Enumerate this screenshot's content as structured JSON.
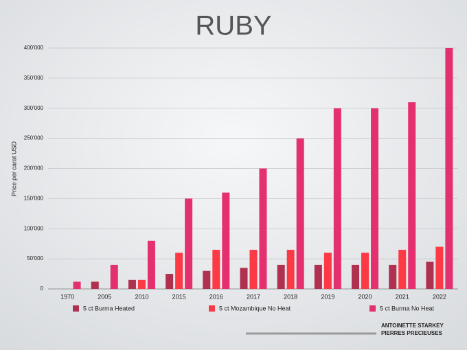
{
  "chart_data": {
    "type": "bar",
    "title": "RUBY",
    "y_label": "Price per carat USD",
    "categories": [
      "1970",
      "2005",
      "2010",
      "2015",
      "2016",
      "2017",
      "2018",
      "2019",
      "2020",
      "2021",
      "2022"
    ],
    "series": [
      {
        "name": "5 ct Burma Heated",
        "color": "#b0304f",
        "values": [
          null,
          12000,
          15000,
          25000,
          30000,
          35000,
          40000,
          40000,
          40000,
          40000,
          45000
        ]
      },
      {
        "name": "5 ct Mozambique No Heat",
        "color": "#fc3a45",
        "values": [
          null,
          null,
          15000,
          60000,
          65000,
          65000,
          65000,
          60000,
          60000,
          65000,
          70000
        ]
      },
      {
        "name": "5 ct Burma No Heat",
        "color": "#e5306f",
        "values": [
          12000,
          40000,
          80000,
          150000,
          160000,
          200000,
          250000,
          300000,
          300000,
          310000,
          400000
        ]
      }
    ],
    "ylim": [
      0,
      400000
    ],
    "yticks": [
      {
        "value": 0,
        "label": "0"
      },
      {
        "value": 50000,
        "label": "50'000"
      },
      {
        "value": 100000,
        "label": "100'000"
      },
      {
        "value": 150000,
        "label": "150'000"
      },
      {
        "value": 200000,
        "label": "200'000"
      },
      {
        "value": 250000,
        "label": "250'000"
      },
      {
        "value": 300000,
        "label": "300'000"
      },
      {
        "value": 350000,
        "label": "350'000"
      },
      {
        "value": 400000,
        "label": "400'000"
      }
    ],
    "grid": true,
    "footer": [
      "ANTOINETTE STARKEY",
      "PIERRES PRECIEUSES"
    ]
  }
}
